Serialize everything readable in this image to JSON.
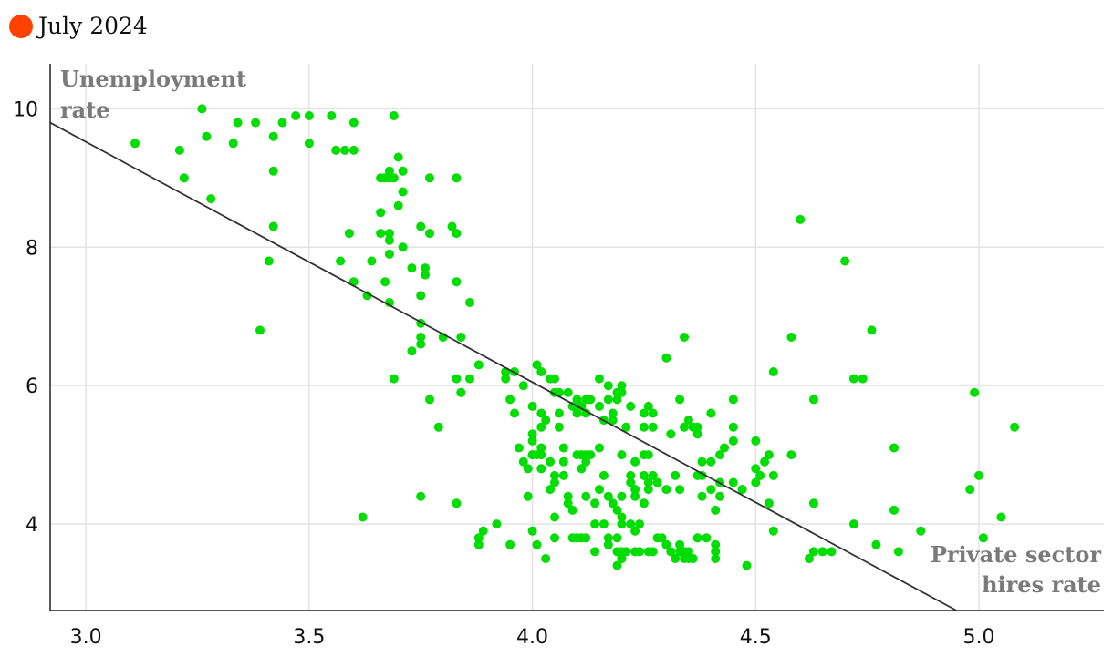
{
  "chart_data": {
    "type": "scatter",
    "title": "",
    "legend": [
      {
        "label": "July 2024",
        "color": "#ff4200"
      }
    ],
    "xlabel": "Private sector hires rate",
    "ylabel": "Unemployment rate",
    "xlim": [
      2.92,
      5.28
    ],
    "ylim": [
      2.75,
      10.65
    ],
    "x_ticks": [
      "3.0",
      "3.5",
      "4.0",
      "4.5",
      "5.0"
    ],
    "y_ticks": [
      "4",
      "6",
      "8",
      "10"
    ],
    "point_color": "#00dd00",
    "trend_color": "#333333",
    "trend_line": [
      [
        2.92,
        9.8
      ],
      [
        4.95,
        2.75
      ]
    ],
    "grid": true,
    "legend_position": "top-left",
    "points": [
      [
        3.26,
        10.0
      ],
      [
        3.34,
        9.8
      ],
      [
        3.38,
        9.8
      ],
      [
        3.44,
        9.8
      ],
      [
        3.47,
        9.9
      ],
      [
        3.5,
        9.9
      ],
      [
        3.55,
        9.9
      ],
      [
        3.6,
        9.8
      ],
      [
        3.69,
        9.9
      ],
      [
        3.11,
        9.5
      ],
      [
        3.21,
        9.4
      ],
      [
        3.27,
        9.6
      ],
      [
        3.33,
        9.5
      ],
      [
        3.42,
        9.6
      ],
      [
        3.5,
        9.5
      ],
      [
        3.56,
        9.4
      ],
      [
        3.58,
        9.4
      ],
      [
        3.6,
        9.4
      ],
      [
        3.22,
        9.0
      ],
      [
        3.28,
        8.7
      ],
      [
        3.42,
        9.1
      ],
      [
        3.42,
        8.3
      ],
      [
        3.41,
        7.8
      ],
      [
        3.39,
        6.8
      ],
      [
        3.66,
        9.0
      ],
      [
        3.67,
        9.0
      ],
      [
        3.68,
        9.0
      ],
      [
        3.68,
        9.1
      ],
      [
        3.7,
        9.3
      ],
      [
        3.71,
        9.1
      ],
      [
        3.69,
        9.0
      ],
      [
        3.71,
        8.8
      ],
      [
        3.7,
        8.6
      ],
      [
        3.66,
        8.5
      ],
      [
        3.66,
        8.2
      ],
      [
        3.68,
        8.2
      ],
      [
        3.68,
        8.1
      ],
      [
        3.68,
        7.9
      ],
      [
        3.71,
        8.0
      ],
      [
        3.64,
        7.8
      ],
      [
        3.67,
        7.5
      ],
      [
        3.68,
        7.2
      ],
      [
        3.75,
        8.3
      ],
      [
        3.77,
        8.2
      ],
      [
        3.73,
        7.7
      ],
      [
        3.76,
        7.7
      ],
      [
        3.76,
        7.6
      ],
      [
        3.59,
        8.2
      ],
      [
        3.57,
        7.8
      ],
      [
        3.6,
        7.5
      ],
      [
        3.63,
        7.3
      ],
      [
        3.75,
        7.3
      ],
      [
        3.75,
        6.9
      ],
      [
        3.75,
        6.7
      ],
      [
        3.75,
        6.6
      ],
      [
        3.73,
        6.5
      ],
      [
        3.69,
        6.1
      ],
      [
        3.82,
        8.3
      ],
      [
        3.83,
        8.2
      ],
      [
        3.77,
        9.0
      ],
      [
        3.83,
        9.0
      ],
      [
        3.83,
        7.5
      ],
      [
        3.86,
        7.2
      ],
      [
        3.8,
        6.7
      ],
      [
        3.84,
        6.7
      ],
      [
        3.88,
        6.3
      ],
      [
        3.83,
        6.1
      ],
      [
        3.86,
        6.1
      ],
      [
        3.84,
        5.9
      ],
      [
        3.77,
        5.8
      ],
      [
        3.79,
        5.4
      ],
      [
        3.75,
        4.4
      ],
      [
        3.83,
        4.3
      ],
      [
        3.62,
        4.1
      ],
      [
        3.94,
        6.2
      ],
      [
        3.94,
        6.1
      ],
      [
        3.96,
        6.2
      ],
      [
        3.98,
        6.0
      ],
      [
        3.95,
        5.8
      ],
      [
        3.96,
        5.6
      ],
      [
        4.01,
        6.3
      ],
      [
        4.02,
        6.2
      ],
      [
        4.04,
        6.1
      ],
      [
        4.05,
        6.1
      ],
      [
        4.05,
        5.9
      ],
      [
        4.06,
        5.9
      ],
      [
        4.08,
        5.9
      ],
      [
        4.1,
        5.8
      ],
      [
        4.12,
        5.8
      ],
      [
        4.13,
        5.8
      ],
      [
        4.15,
        5.7
      ],
      [
        4.11,
        5.7
      ],
      [
        4.09,
        5.7
      ],
      [
        4.1,
        5.6
      ],
      [
        4.12,
        5.6
      ],
      [
        4.02,
        5.6
      ],
      [
        4.0,
        5.7
      ],
      [
        4.03,
        5.5
      ],
      [
        4.06,
        5.6
      ],
      [
        4.02,
        5.4
      ],
      [
        4.06,
        5.4
      ],
      [
        4.15,
        6.1
      ],
      [
        4.17,
        6.0
      ],
      [
        4.19,
        5.9
      ],
      [
        4.2,
        6.0
      ],
      [
        4.2,
        5.9
      ],
      [
        4.17,
        5.8
      ],
      [
        4.19,
        5.8
      ],
      [
        4.22,
        5.7
      ],
      [
        4.18,
        5.6
      ],
      [
        4.16,
        5.5
      ],
      [
        4.18,
        5.5
      ],
      [
        4.21,
        5.4
      ],
      [
        4.25,
        5.6
      ],
      [
        4.26,
        5.7
      ],
      [
        4.27,
        5.6
      ],
      [
        4.25,
        5.4
      ],
      [
        4.27,
        5.4
      ],
      [
        4.33,
        5.8
      ],
      [
        4.3,
        6.4
      ],
      [
        4.34,
        6.7
      ],
      [
        4.35,
        5.5
      ],
      [
        4.36,
        5.4
      ],
      [
        4.37,
        5.4
      ],
      [
        4.37,
        5.3
      ],
      [
        4.31,
        5.3
      ],
      [
        4.34,
        5.4
      ],
      [
        4.4,
        5.6
      ],
      [
        4.45,
        5.8
      ],
      [
        4.45,
        5.4
      ],
      [
        4.45,
        5.2
      ],
      [
        4.43,
        5.1
      ],
      [
        4.42,
        5.0
      ],
      [
        4.5,
        5.2
      ],
      [
        4.52,
        4.9
      ],
      [
        4.53,
        5.0
      ],
      [
        4.54,
        4.7
      ],
      [
        4.5,
        4.8
      ],
      [
        4.51,
        4.7
      ],
      [
        4.5,
        4.6
      ],
      [
        4.47,
        4.5
      ],
      [
        4.45,
        4.6
      ],
      [
        4.42,
        4.6
      ],
      [
        4.38,
        4.9
      ],
      [
        4.4,
        4.9
      ],
      [
        4.37,
        4.7
      ],
      [
        4.38,
        4.7
      ],
      [
        4.4,
        4.5
      ],
      [
        4.42,
        4.4
      ],
      [
        4.38,
        4.4
      ],
      [
        4.41,
        4.2
      ],
      [
        4.53,
        4.3
      ],
      [
        4.54,
        3.9
      ],
      [
        4.0,
        5.3
      ],
      [
        4.0,
        5.2
      ],
      [
        3.98,
        4.9
      ],
      [
        4.0,
        5.0
      ],
      [
        4.01,
        5.0
      ],
      [
        4.02,
        5.1
      ],
      [
        4.0,
        5.0
      ],
      [
        4.02,
        5.0
      ],
      [
        3.99,
        4.8
      ],
      [
        4.02,
        4.8
      ],
      [
        3.97,
        5.1
      ],
      [
        4.04,
        4.9
      ],
      [
        4.05,
        4.7
      ],
      [
        4.07,
        5.1
      ],
      [
        4.07,
        4.9
      ],
      [
        4.07,
        4.7
      ],
      [
        4.1,
        5.0
      ],
      [
        4.11,
        5.0
      ],
      [
        4.12,
        4.9
      ],
      [
        4.12,
        5.0
      ],
      [
        4.11,
        4.8
      ],
      [
        4.13,
        5.0
      ],
      [
        4.15,
        5.1
      ],
      [
        4.16,
        4.7
      ],
      [
        4.2,
        5.0
      ],
      [
        4.23,
        4.9
      ],
      [
        4.25,
        5.0
      ],
      [
        4.26,
        5.0
      ],
      [
        4.22,
        4.7
      ],
      [
        4.25,
        4.7
      ],
      [
        4.27,
        4.7
      ],
      [
        4.26,
        4.6
      ],
      [
        4.22,
        4.6
      ],
      [
        4.23,
        4.5
      ],
      [
        4.26,
        4.5
      ],
      [
        4.28,
        4.6
      ],
      [
        4.3,
        4.5
      ],
      [
        4.32,
        4.7
      ],
      [
        4.33,
        4.5
      ],
      [
        4.05,
        4.6
      ],
      [
        4.04,
        4.5
      ],
      [
        4.08,
        4.4
      ],
      [
        4.08,
        4.3
      ],
      [
        4.09,
        4.2
      ],
      [
        4.12,
        4.4
      ],
      [
        4.14,
        4.3
      ],
      [
        4.15,
        4.5
      ],
      [
        4.17,
        4.4
      ],
      [
        4.18,
        4.3
      ],
      [
        4.2,
        4.4
      ],
      [
        4.23,
        4.4
      ],
      [
        4.25,
        4.3
      ],
      [
        4.19,
        4.2
      ],
      [
        4.2,
        4.1
      ],
      [
        4.2,
        4.0
      ],
      [
        4.22,
        4.0
      ],
      [
        4.23,
        3.9
      ],
      [
        4.24,
        4.0
      ],
      [
        4.14,
        4.0
      ],
      [
        4.16,
        4.0
      ],
      [
        4.05,
        4.1
      ],
      [
        3.99,
        4.4
      ],
      [
        4.0,
        3.9
      ],
      [
        3.92,
        4.0
      ],
      [
        3.89,
        3.9
      ],
      [
        3.88,
        3.8
      ],
      [
        3.88,
        3.7
      ],
      [
        3.95,
        3.7
      ],
      [
        4.01,
        3.7
      ],
      [
        4.03,
        3.5
      ],
      [
        4.05,
        3.8
      ],
      [
        4.09,
        3.8
      ],
      [
        4.1,
        3.8
      ],
      [
        4.11,
        3.8
      ],
      [
        4.12,
        3.8
      ],
      [
        4.14,
        3.6
      ],
      [
        4.17,
        3.8
      ],
      [
        4.17,
        3.7
      ],
      [
        4.19,
        3.8
      ],
      [
        4.2,
        3.6
      ],
      [
        4.19,
        3.6
      ],
      [
        4.2,
        3.5
      ],
      [
        4.21,
        3.6
      ],
      [
        4.19,
        3.4
      ],
      [
        4.2,
        3.5
      ],
      [
        4.23,
        3.6
      ],
      [
        4.24,
        3.6
      ],
      [
        4.26,
        3.6
      ],
      [
        4.27,
        3.6
      ],
      [
        4.28,
        3.8
      ],
      [
        4.29,
        3.8
      ],
      [
        4.3,
        3.7
      ],
      [
        4.31,
        3.6
      ],
      [
        4.33,
        3.7
      ],
      [
        4.32,
        3.5
      ],
      [
        4.34,
        3.6
      ],
      [
        4.33,
        3.6
      ],
      [
        4.34,
        3.5
      ],
      [
        4.35,
        3.5
      ],
      [
        4.36,
        3.5
      ],
      [
        4.35,
        3.6
      ],
      [
        4.37,
        3.8
      ],
      [
        4.39,
        3.8
      ],
      [
        4.41,
        3.6
      ],
      [
        4.41,
        3.7
      ],
      [
        4.41,
        3.5
      ],
      [
        4.48,
        3.4
      ],
      [
        4.47,
        4.5
      ],
      [
        4.6,
        8.4
      ],
      [
        4.58,
        6.7
      ],
      [
        4.54,
        6.2
      ],
      [
        4.58,
        5.0
      ],
      [
        4.63,
        5.8
      ],
      [
        4.63,
        4.3
      ],
      [
        4.62,
        3.5
      ],
      [
        4.63,
        3.6
      ],
      [
        4.65,
        3.6
      ],
      [
        4.67,
        3.6
      ],
      [
        4.7,
        7.8
      ],
      [
        4.72,
        6.1
      ],
      [
        4.74,
        6.1
      ],
      [
        4.76,
        6.8
      ],
      [
        4.72,
        4.0
      ],
      [
        4.77,
        3.7
      ],
      [
        4.81,
        5.1
      ],
      [
        4.81,
        4.2
      ],
      [
        4.82,
        3.6
      ],
      [
        4.87,
        3.9
      ],
      [
        4.99,
        5.9
      ],
      [
        5.0,
        4.7
      ],
      [
        4.98,
        4.5
      ],
      [
        5.01,
        3.8
      ],
      [
        5.05,
        4.1
      ],
      [
        5.08,
        5.4
      ]
    ]
  }
}
